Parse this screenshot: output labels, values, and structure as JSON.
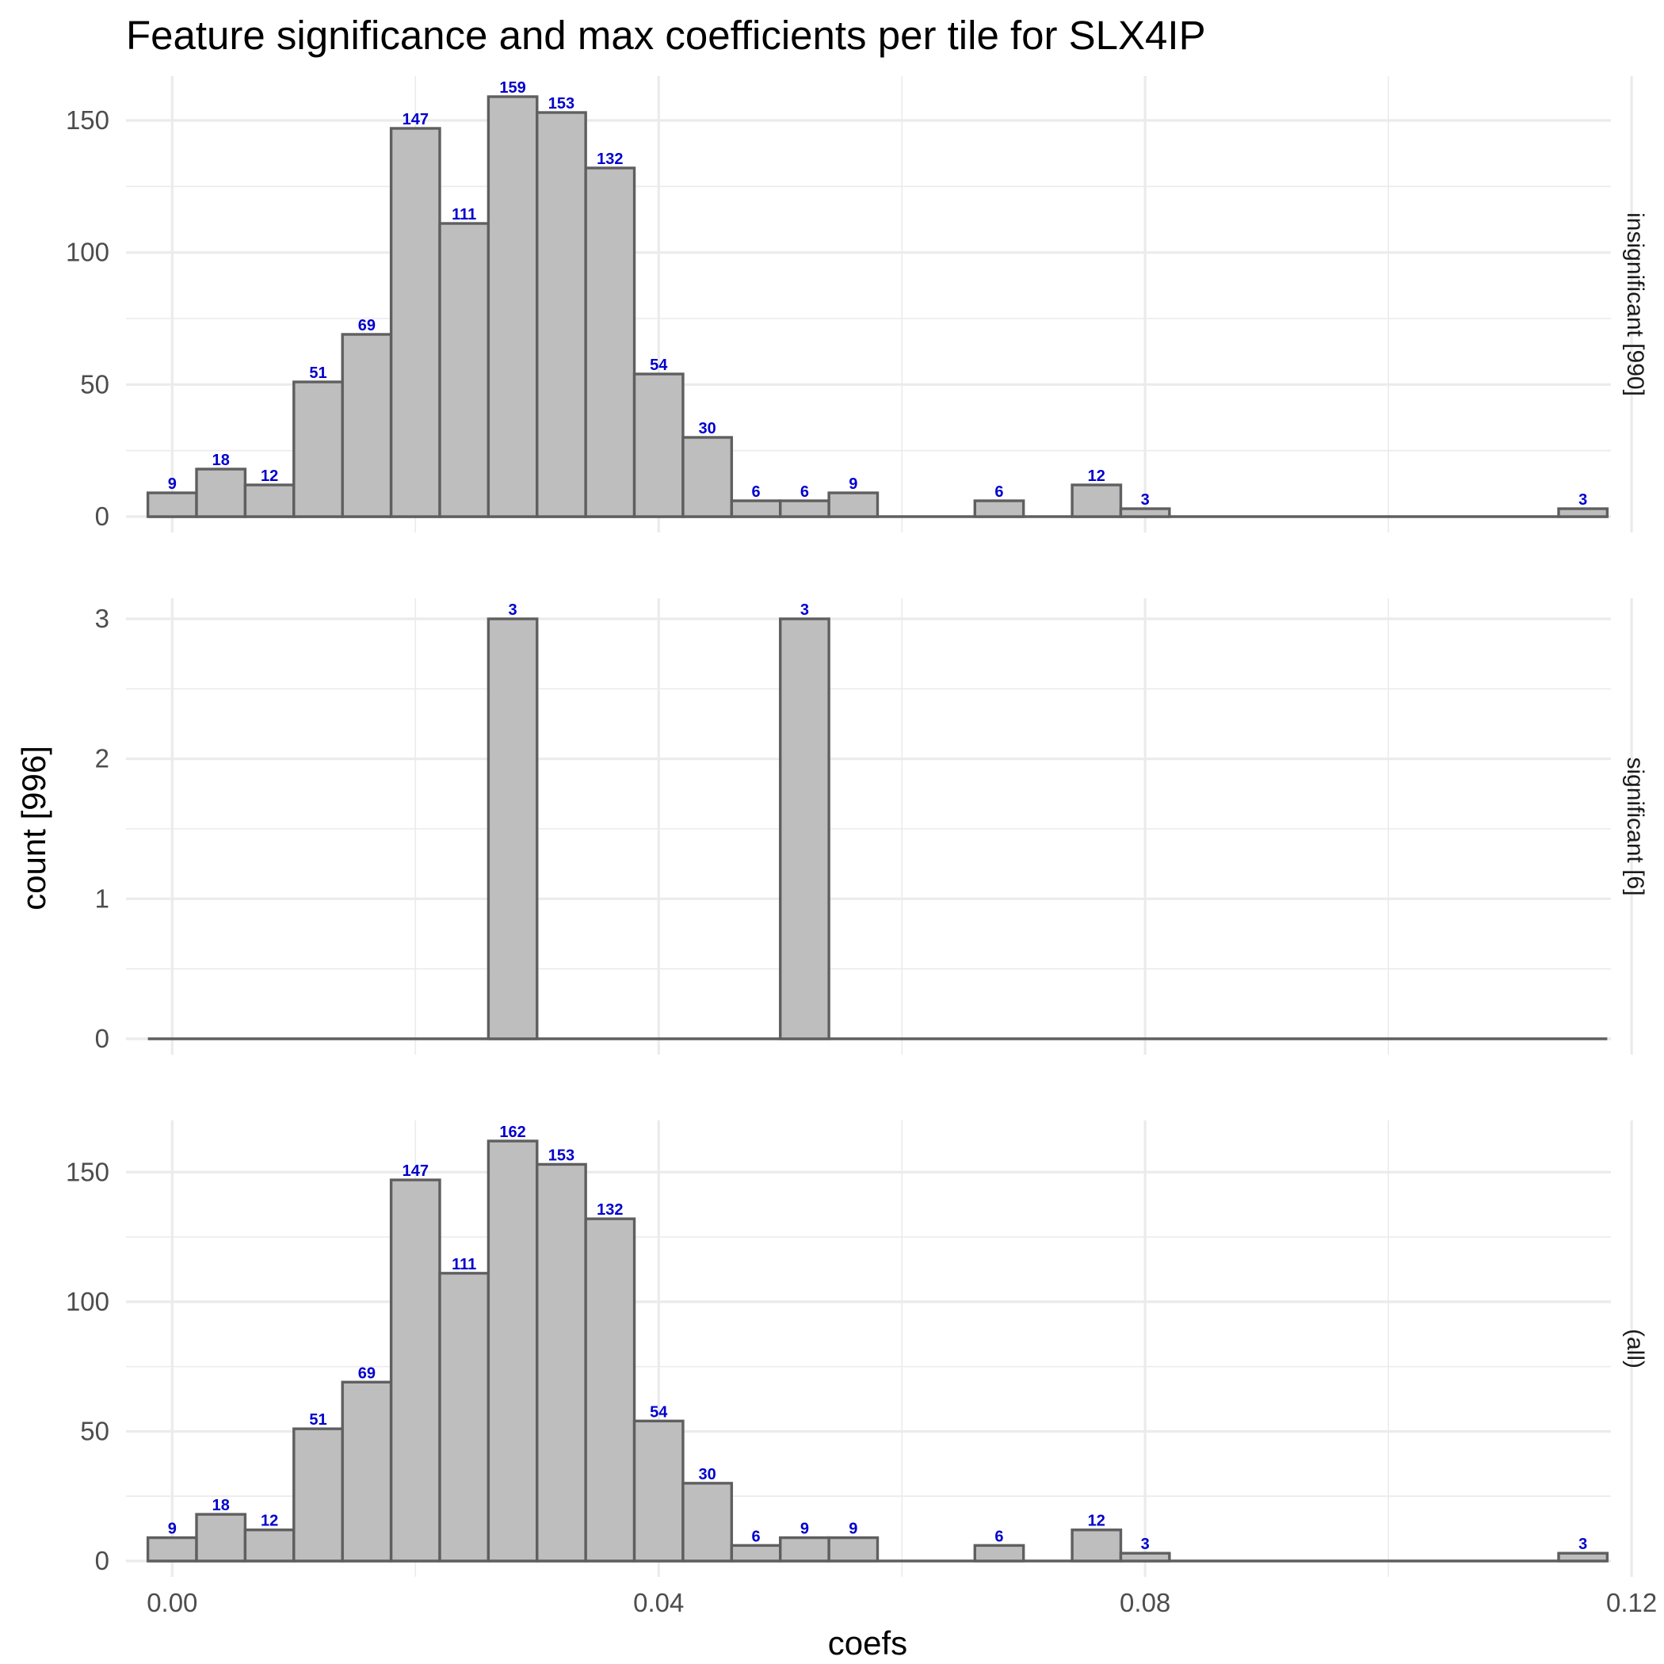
{
  "chart_data": {
    "type": "bar",
    "title": "Feature significance and max coefficients per tile for SLX4IP",
    "xlabel": "coefs",
    "ylabel": "count [996]",
    "xlim": [
      -0.0038,
      0.1183
    ],
    "x_ticks": [
      0.0,
      0.04,
      0.08,
      0.12
    ],
    "x_tick_labels": [
      "0.00",
      "0.04",
      "0.08",
      "0.12"
    ],
    "grid": true,
    "bin_edges": [
      -0.002,
      0.002,
      0.006,
      0.01,
      0.014,
      0.018,
      0.022,
      0.026,
      0.03,
      0.034,
      0.038,
      0.042,
      0.046,
      0.05,
      0.054,
      0.058,
      0.062,
      0.066,
      0.07,
      0.074,
      0.078,
      0.082,
      0.086,
      0.09,
      0.094,
      0.098,
      0.102,
      0.106,
      0.11,
      0.114,
      0.118
    ],
    "panels": [
      {
        "strip": "insignificant [990]",
        "ylim": [
          0,
          159
        ],
        "y_ticks": [
          0,
          50,
          100,
          150
        ],
        "y_tick_labels": [
          "0",
          "50",
          "100",
          "150"
        ],
        "counts": [
          9,
          18,
          12,
          51,
          69,
          147,
          111,
          159,
          153,
          132,
          54,
          30,
          6,
          6,
          9,
          0,
          0,
          6,
          0,
          12,
          3,
          0,
          0,
          0,
          0,
          0,
          0,
          0,
          0,
          3
        ]
      },
      {
        "strip": "significant [6]",
        "ylim": [
          0,
          3
        ],
        "y_ticks": [
          0,
          1,
          2,
          3
        ],
        "y_tick_labels": [
          "0",
          "1",
          "2",
          "3"
        ],
        "counts": [
          0,
          0,
          0,
          0,
          0,
          0,
          0,
          3,
          0,
          0,
          0,
          0,
          0,
          3,
          0,
          0,
          0,
          0,
          0,
          0,
          0,
          0,
          0,
          0,
          0,
          0,
          0,
          0,
          0,
          0
        ]
      },
      {
        "strip": "(all)",
        "ylim": [
          0,
          162
        ],
        "y_ticks": [
          0,
          50,
          100,
          150
        ],
        "y_tick_labels": [
          "0",
          "50",
          "100",
          "150"
        ],
        "counts": [
          9,
          18,
          12,
          51,
          69,
          147,
          111,
          162,
          153,
          132,
          54,
          30,
          6,
          9,
          9,
          0,
          0,
          6,
          0,
          12,
          3,
          0,
          0,
          0,
          0,
          0,
          0,
          0,
          0,
          3
        ]
      }
    ],
    "colors": {
      "bar_fill": "#bebebe",
      "bar_stroke": "#5f5f5f",
      "count_label": "#0000cd"
    }
  }
}
